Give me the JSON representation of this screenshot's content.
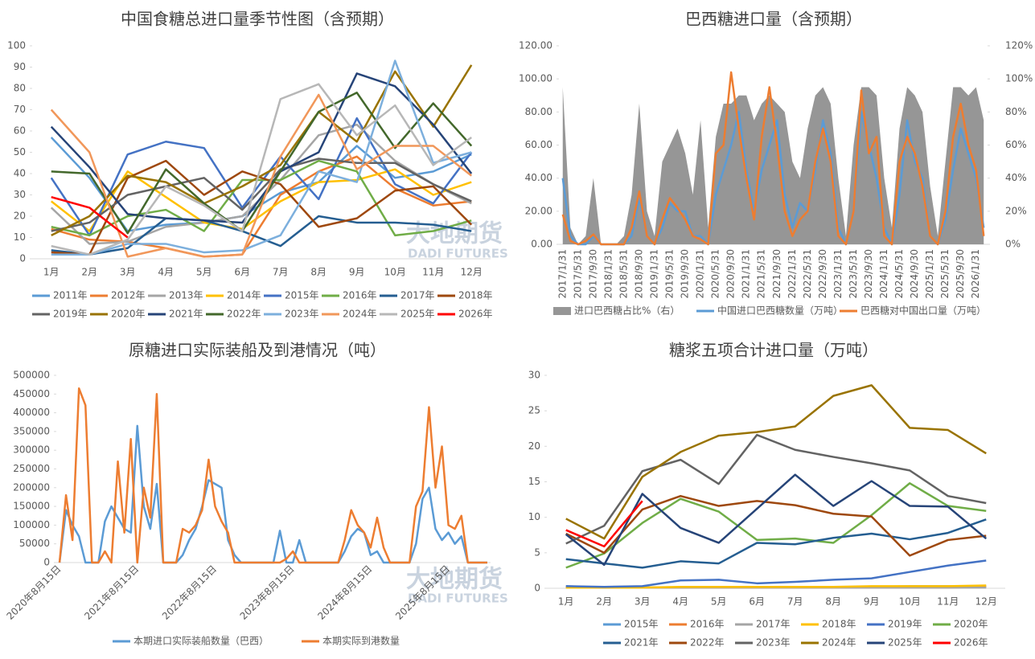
{
  "watermark": {
    "cn": "大地期货",
    "en": "DADI FUTURES"
  },
  "chart_data": [
    {
      "type": "line",
      "title": "中国食糖总进口量季节性图（含预期）",
      "categories": [
        "1月",
        "2月",
        "3月",
        "4月",
        "5月",
        "6月",
        "7月",
        "8月",
        "9月",
        "10月",
        "11月",
        "12月"
      ],
      "ylim": [
        0,
        100
      ],
      "yticks": [
        0,
        10,
        20,
        30,
        40,
        50,
        60,
        70,
        80,
        90,
        100
      ],
      "series": [
        {
          "name": "2011年",
          "color": "#5b9bd5",
          "values": [
            57,
            38,
            13,
            16,
            17,
            20,
            31,
            36,
            53,
            38,
            41,
            49
          ]
        },
        {
          "name": "2012年",
          "color": "#ed7d31",
          "values": [
            14,
            9,
            8,
            5,
            1,
            2,
            30,
            41,
            48,
            33,
            25,
            27
          ]
        },
        {
          "name": "2013年",
          "color": "#a5a5a5",
          "values": [
            24,
            7,
            8,
            15,
            17,
            20,
            37,
            58,
            63,
            46,
            35,
            26
          ]
        },
        {
          "name": "2014年",
          "color": "#ffc000",
          "values": [
            27,
            13,
            41,
            29,
            17,
            14,
            27,
            36,
            37,
            42,
            30,
            36
          ]
        },
        {
          "name": "2015年",
          "color": "#4472c4",
          "values": [
            38,
            11,
            49,
            55,
            52,
            24,
            48,
            28,
            66,
            35,
            26,
            50
          ]
        },
        {
          "name": "2016年",
          "color": "#70ad47",
          "values": [
            15,
            11,
            20,
            23,
            13,
            37,
            37,
            46,
            41,
            11,
            13,
            18
          ]
        },
        {
          "name": "2017年",
          "color": "#255e91",
          "values": [
            4,
            2,
            5,
            19,
            18,
            13,
            6,
            20,
            17,
            17,
            16,
            13
          ]
        },
        {
          "name": "2018年",
          "color": "#9e480e",
          "values": [
            3,
            2,
            38,
            46,
            30,
            41,
            35,
            15,
            19,
            32,
            34,
            16
          ]
        },
        {
          "name": "2019年",
          "color": "#636363",
          "values": [
            13,
            17,
            30,
            34,
            38,
            23,
            42,
            47,
            45,
            45,
            35,
            27
          ]
        },
        {
          "name": "2020年",
          "color": "#997300",
          "values": [
            11,
            20,
            39,
            36,
            26,
            34,
            44,
            69,
            55,
            88,
            62,
            91
          ]
        },
        {
          "name": "2021年",
          "color": "#264478",
          "values": [
            62,
            43,
            21,
            19,
            18,
            17,
            41,
            50,
            87,
            81,
            63,
            40
          ]
        },
        {
          "name": "2022年",
          "color": "#43682b",
          "values": [
            41,
            40,
            12,
            42,
            26,
            13,
            41,
            69,
            78,
            52,
            73,
            53
          ]
        },
        {
          "name": "2023年",
          "color": "#7cafdd",
          "values": [
            2,
            2,
            7,
            7,
            3,
            4,
            11,
            41,
            36,
            93,
            45,
            50
          ]
        },
        {
          "name": "2024年",
          "color": "#f1975a",
          "values": [
            70,
            50,
            1,
            5,
            1,
            2,
            48,
            77,
            42,
            53,
            53,
            39
          ]
        },
        {
          "name": "2025年",
          "color": "#b7b7b7",
          "values": [
            6,
            2,
            9,
            34,
            25,
            13,
            75,
            82,
            58,
            72,
            44,
            57
          ]
        },
        {
          "name": "2026年",
          "color": "#ff0000",
          "values": [
            29,
            24,
            10,
            null,
            null,
            null,
            null,
            null,
            null,
            null,
            null,
            null
          ]
        }
      ]
    },
    {
      "type": "line",
      "title": "巴西糖进口量（含预期）",
      "categories": [
        "2017/1/31",
        null,
        "2017/5/31",
        null,
        "2017/9/30",
        null,
        "2018/1/31",
        null,
        "2018/5/31",
        null,
        "2018/9/30",
        null,
        "2019/1/31",
        null,
        "2019/5/31",
        null,
        "2019/9/30",
        null,
        "2020/1/31",
        null,
        "2020/5/31",
        null,
        "2020/9/30",
        null,
        "2021/1/31",
        null,
        "2021/5/31",
        null,
        "2021/9/30",
        null,
        "2022/1/31",
        null,
        "2022/5/31",
        null,
        "2022/9/30",
        null,
        "2023/1/31",
        null,
        "2023/5/31",
        null,
        "2023/9/30",
        null,
        "2024/1/31",
        null,
        "2024/5/31",
        null,
        "2024/9/30",
        null,
        "2025/1/31",
        null,
        "2025/5/31",
        null,
        "2025/9/30",
        null,
        "2026/1/31",
        null
      ],
      "ylim": [
        0,
        120
      ],
      "yticks": [
        {
          "value": 0,
          "label": "0.00"
        },
        {
          "value": 20,
          "label": "20.00"
        },
        {
          "value": 40,
          "label": "40.00"
        },
        {
          "value": 60,
          "label": "60.00"
        },
        {
          "value": 80,
          "label": "80.00"
        },
        {
          "value": 100,
          "label": "100.00"
        },
        {
          "value": 120,
          "label": "120.00"
        }
      ],
      "y2lim": [
        0,
        120
      ],
      "y2ticks": [
        {
          "value": 0,
          "label": "0%"
        },
        {
          "value": 20,
          "label": "20%"
        },
        {
          "value": 40,
          "label": "40%"
        },
        {
          "value": 60,
          "label": "60%"
        },
        {
          "value": 80,
          "label": "80%"
        },
        {
          "value": 100,
          "label": "100%"
        },
        {
          "value": 120,
          "label": "120%"
        }
      ],
      "series": [
        {
          "name": "进口巴西糖占比%（右）",
          "type": "area",
          "axis": "y2",
          "color": "#969696",
          "values": [
            95,
            10,
            0,
            5,
            40,
            0,
            0,
            0,
            5,
            30,
            85,
            20,
            5,
            50,
            60,
            70,
            55,
            30,
            75,
            10,
            65,
            85,
            85,
            90,
            90,
            75,
            85,
            90,
            85,
            80,
            50,
            40,
            70,
            90,
            95,
            85,
            40,
            5,
            60,
            95,
            95,
            90,
            40,
            10,
            70,
            95,
            90,
            80,
            35,
            5,
            50,
            95,
            95,
            90,
            95,
            75
          ]
        },
        {
          "name": "中国进口巴西糖数量（万吨）",
          "color": "#5b9bd5",
          "values": [
            40,
            5,
            0,
            0,
            5,
            0,
            0,
            0,
            0,
            5,
            28,
            5,
            0,
            10,
            25,
            20,
            20,
            5,
            5,
            0,
            30,
            45,
            60,
            80,
            45,
            20,
            45,
            60,
            75,
            30,
            10,
            25,
            20,
            45,
            75,
            55,
            10,
            0,
            20,
            80,
            60,
            40,
            10,
            0,
            30,
            75,
            50,
            40,
            5,
            0,
            15,
            45,
            70,
            55,
            40,
            10
          ]
        },
        {
          "name": "巴西糖对中国出口量（万吨）",
          "color": "#ed7d31",
          "values": [
            18,
            2,
            0,
            2,
            6,
            0,
            0,
            0,
            0,
            10,
            32,
            5,
            0,
            15,
            28,
            22,
            15,
            5,
            3,
            0,
            55,
            60,
            104,
            70,
            40,
            15,
            65,
            95,
            60,
            20,
            5,
            15,
            20,
            50,
            70,
            50,
            5,
            0,
            20,
            93,
            55,
            65,
            5,
            0,
            50,
            65,
            55,
            35,
            5,
            0,
            20,
            65,
            85,
            60,
            45,
            5
          ]
        }
      ]
    },
    {
      "type": "line",
      "title": "原糖进口实际装船及到港情况（吨）",
      "categories": [
        "2020年8月15日",
        null,
        null,
        null,
        null,
        null,
        null,
        null,
        null,
        null,
        null,
        null,
        "2021年8月15日",
        null,
        null,
        null,
        null,
        null,
        null,
        null,
        null,
        null,
        null,
        null,
        "2022年8月15日",
        null,
        null,
        null,
        null,
        null,
        null,
        null,
        null,
        null,
        null,
        null,
        "2023年8月15日",
        null,
        null,
        null,
        null,
        null,
        null,
        null,
        null,
        null,
        null,
        null,
        "2024年8月15日",
        null,
        null,
        null,
        null,
        null,
        null,
        null,
        null,
        null,
        null,
        null,
        "2025年8月15日",
        null,
        null,
        null,
        null,
        null,
        null
      ],
      "ylim": [
        0,
        500000
      ],
      "yticks": [
        0,
        50000,
        100000,
        150000,
        200000,
        250000,
        300000,
        350000,
        400000,
        450000,
        500000
      ],
      "series": [
        {
          "name": "本期进口实际装船数量（巴西）",
          "color": "#5b9bd5",
          "values": [
            0,
            140000,
            100000,
            70000,
            0,
            0,
            0,
            110000,
            150000,
            120000,
            90000,
            80000,
            365000,
            150000,
            90000,
            210000,
            0,
            0,
            0,
            20000,
            60000,
            90000,
            150000,
            220000,
            210000,
            200000,
            60000,
            20000,
            0,
            0,
            0,
            0,
            0,
            0,
            85000,
            0,
            0,
            60000,
            0,
            0,
            0,
            0,
            0,
            0,
            30000,
            70000,
            90000,
            80000,
            20000,
            30000,
            0,
            0,
            0,
            0,
            0,
            50000,
            170000,
            200000,
            90000,
            60000,
            80000,
            50000,
            70000,
            0,
            0,
            0,
            0
          ]
        },
        {
          "name": "本期实际到港数量",
          "color": "#ed7d31",
          "values": [
            0,
            180000,
            60000,
            465000,
            420000,
            0,
            0,
            30000,
            0,
            270000,
            80000,
            330000,
            0,
            200000,
            120000,
            450000,
            0,
            0,
            0,
            90000,
            80000,
            100000,
            140000,
            275000,
            150000,
            110000,
            80000,
            0,
            0,
            0,
            0,
            0,
            0,
            0,
            0,
            10000,
            30000,
            0,
            0,
            0,
            0,
            0,
            0,
            0,
            60000,
            140000,
            100000,
            80000,
            40000,
            120000,
            40000,
            0,
            0,
            0,
            0,
            150000,
            190000,
            415000,
            200000,
            310000,
            100000,
            90000,
            125000,
            0,
            0,
            0,
            0
          ]
        }
      ]
    },
    {
      "type": "line",
      "title": "糖浆五项合计进口量（万吨）",
      "categories": [
        "1月",
        "2月",
        "3月",
        "4月",
        "5月",
        "6月",
        "7月",
        "8月",
        "9月",
        "10月",
        "11月",
        "12月"
      ],
      "ylim": [
        0,
        30
      ],
      "yticks": [
        0,
        5,
        10,
        15,
        20,
        25,
        30
      ],
      "series": [
        {
          "name": "2015年",
          "color": "#5b9bd5",
          "values": [
            0.3,
            0.1,
            0.1,
            0.1,
            0.2,
            0.2,
            0.2,
            0.2,
            0.2,
            0.3,
            0.3,
            0.3
          ]
        },
        {
          "name": "2016年",
          "color": "#ed7d31",
          "values": [
            0.2,
            0.1,
            0.1,
            0.1,
            0.1,
            0.1,
            0.1,
            0.1,
            0.1,
            0.1,
            0.1,
            0.2
          ]
        },
        {
          "name": "2017年",
          "color": "#a5a5a5",
          "values": [
            0.1,
            0.1,
            0.1,
            0.1,
            0.1,
            0.1,
            0.1,
            0.1,
            0.1,
            0.1,
            0.1,
            0.1
          ]
        },
        {
          "name": "2018年",
          "color": "#ffc000",
          "values": [
            0.1,
            0.1,
            0.1,
            0.2,
            0.2,
            0.2,
            0.2,
            0.2,
            0.3,
            0.3,
            0.3,
            0.4
          ]
        },
        {
          "name": "2019年",
          "color": "#4472c4",
          "values": [
            0.3,
            0.2,
            0.3,
            1.1,
            1.2,
            0.7,
            0.9,
            1.2,
            1.4,
            2.3,
            3.2,
            3.9
          ]
        },
        {
          "name": "2020年",
          "color": "#70ad47",
          "values": [
            2.9,
            4.9,
            9.2,
            12.6,
            10.8,
            6.8,
            7.0,
            6.4,
            10.3,
            14.8,
            11.6,
            10.9
          ]
        },
        {
          "name": "2021年",
          "color": "#255e91",
          "values": [
            4.1,
            3.5,
            2.9,
            3.8,
            3.5,
            6.4,
            6.2,
            7.1,
            7.7,
            6.9,
            7.8,
            9.7
          ]
        },
        {
          "name": "2022年",
          "color": "#9e480e",
          "values": [
            7.7,
            5.0,
            11.1,
            13.0,
            11.6,
            12.3,
            11.7,
            10.5,
            10.1,
            4.6,
            6.8,
            7.4
          ]
        },
        {
          "name": "2023年",
          "color": "#636363",
          "values": [
            6.3,
            8.8,
            16.5,
            18.1,
            14.7,
            21.6,
            19.5,
            18.5,
            17.6,
            16.6,
            13.0,
            12.0
          ]
        },
        {
          "name": "2024年",
          "color": "#997300",
          "values": [
            9.8,
            7.0,
            15.7,
            19.2,
            21.5,
            22.0,
            22.8,
            27.1,
            28.6,
            22.6,
            22.3,
            19.0
          ]
        },
        {
          "name": "2025年",
          "color": "#264478",
          "values": [
            7.6,
            3.3,
            13.3,
            8.5,
            6.4,
            11.2,
            16.0,
            11.6,
            15.1,
            11.6,
            11.5,
            7.0
          ]
        },
        {
          "name": "2026年",
          "color": "#ff0000",
          "values": [
            8.2,
            5.9,
            12.3,
            null,
            null,
            null,
            null,
            null,
            null,
            null,
            null,
            null
          ]
        }
      ]
    }
  ]
}
